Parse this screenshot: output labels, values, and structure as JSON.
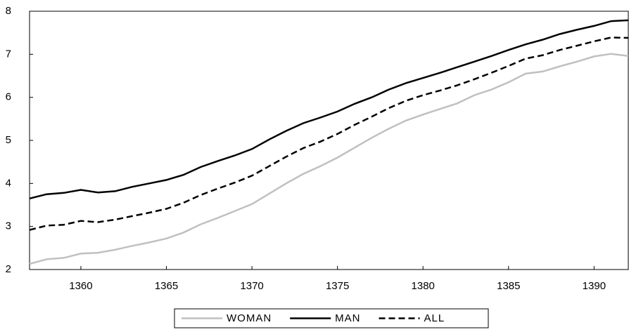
{
  "chart_data": {
    "type": "line",
    "x": [
      1357,
      1358,
      1359,
      1360,
      1361,
      1362,
      1363,
      1364,
      1365,
      1366,
      1367,
      1368,
      1369,
      1370,
      1371,
      1372,
      1373,
      1374,
      1375,
      1376,
      1377,
      1378,
      1379,
      1380,
      1381,
      1382,
      1383,
      1384,
      1385,
      1386,
      1387,
      1388,
      1389,
      1390,
      1391,
      1392
    ],
    "xlim": [
      1357,
      1392
    ],
    "xticks": [
      1360,
      1365,
      1370,
      1375,
      1380,
      1385,
      1390
    ],
    "ylim": [
      2,
      8
    ],
    "yticks": [
      2,
      3,
      4,
      5,
      6,
      7,
      8
    ],
    "series": [
      {
        "name": "WOMAN",
        "color": "#c0c0c0",
        "dash": false,
        "values": [
          2.13,
          2.24,
          2.27,
          2.37,
          2.39,
          2.46,
          2.55,
          2.63,
          2.72,
          2.86,
          3.05,
          3.2,
          3.36,
          3.52,
          3.76,
          4.0,
          4.22,
          4.4,
          4.6,
          4.83,
          5.06,
          5.27,
          5.46,
          5.6,
          5.73,
          5.86,
          6.05,
          6.18,
          6.35,
          6.55,
          6.6,
          6.72,
          6.83,
          6.95,
          7.01,
          6.96
        ]
      },
      {
        "name": "MAN",
        "color": "#000000",
        "dash": false,
        "values": [
          3.65,
          3.75,
          3.78,
          3.85,
          3.79,
          3.82,
          3.92,
          4.0,
          4.08,
          4.2,
          4.38,
          4.52,
          4.65,
          4.8,
          5.02,
          5.22,
          5.4,
          5.53,
          5.67,
          5.85,
          6.0,
          6.18,
          6.33,
          6.45,
          6.57,
          6.7,
          6.83,
          6.96,
          7.1,
          7.23,
          7.34,
          7.47,
          7.57,
          7.66,
          7.77,
          7.79
        ]
      },
      {
        "name": "ALL",
        "color": "#000000",
        "dash": true,
        "values": [
          2.92,
          3.02,
          3.04,
          3.13,
          3.1,
          3.16,
          3.24,
          3.32,
          3.41,
          3.55,
          3.73,
          3.88,
          4.02,
          4.18,
          4.4,
          4.62,
          4.82,
          4.97,
          5.15,
          5.36,
          5.55,
          5.75,
          5.92,
          6.05,
          6.16,
          6.28,
          6.42,
          6.57,
          6.73,
          6.9,
          6.98,
          7.1,
          7.2,
          7.3,
          7.39,
          7.38
        ]
      }
    ]
  }
}
